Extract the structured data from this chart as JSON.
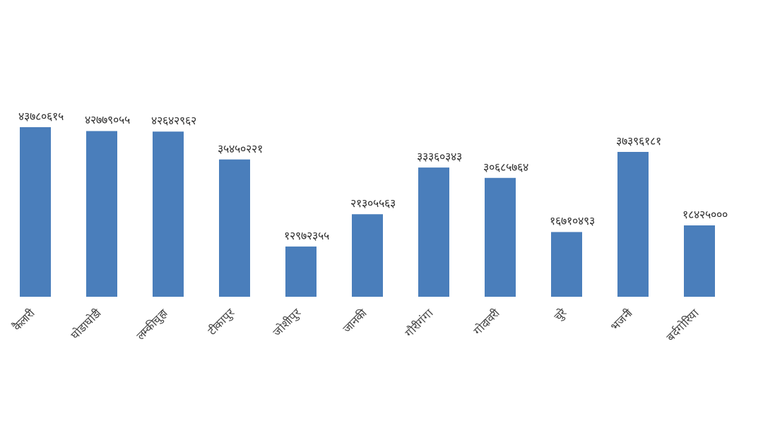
{
  "chart_data": {
    "type": "bar",
    "categories": [
      "कैलारी",
      "घोडाघोडी",
      "लम्कीचुहा",
      "टीकापुर",
      "जोशीपुर",
      "जानकी",
      "गौरीगंगा",
      "गोदावरी",
      "चुरे",
      "भजनी",
      "बर्दगोरिया"
    ],
    "values": [
      43780615,
      42779055,
      42642962,
      35450221,
      12972355,
      21305563,
      33360343,
      30685764,
      16710493,
      37396181,
      18425000
    ],
    "value_labels": [
      "४३७८०६१५",
      "४२७७९०५५",
      "४२६४२९६२",
      "३५४५०२२१",
      "१२९७२३५५",
      "२१३०५५६३",
      "३३३६०३४३",
      "३०६८५७६४",
      "१६७१०४९३",
      "३७३९६१८१",
      "१८४२५०००"
    ],
    "color": "#4a7ebb"
  }
}
